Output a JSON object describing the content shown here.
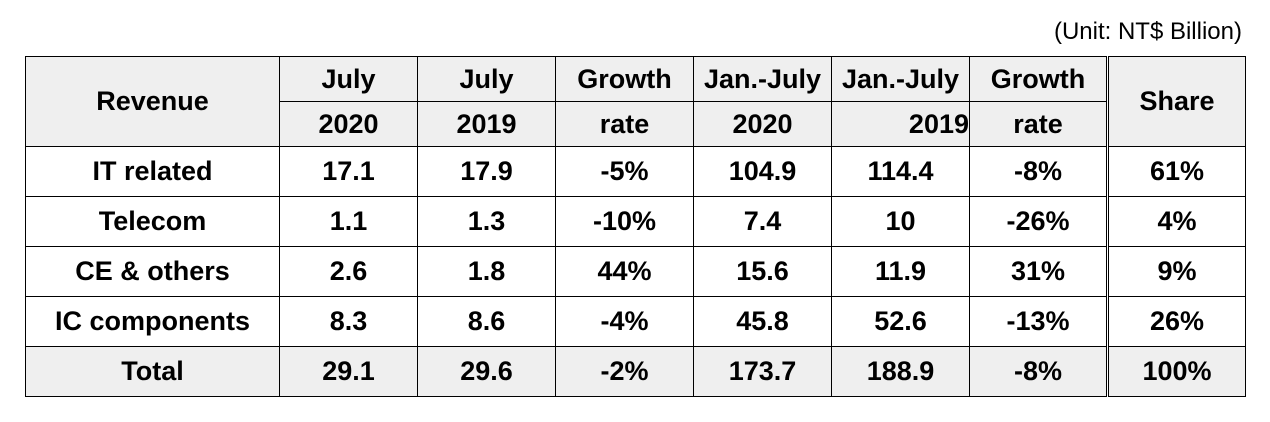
{
  "unit_note": "(Unit: NT$ Billion)",
  "header": {
    "revenue": "Revenue",
    "july_top": "July",
    "july_2020": "2020",
    "july_2019_top": "July",
    "july_2019": "2019",
    "growth_top": "Growth",
    "growth_bottom": "rate",
    "janjuly_2020_top": "Jan.-July",
    "janjuly_2020": "2020",
    "janjuly_2019_top": "Jan.-July",
    "janjuly_2019": "2019",
    "growth2_top": "Growth",
    "growth2_bottom": "rate",
    "share": "Share"
  },
  "rows": [
    {
      "name": "IT related",
      "july2020": "17.1",
      "july2019": "17.9",
      "growth": "-5%",
      "jj2020": "104.9",
      "jj2019": "114.4",
      "growth2": "-8%",
      "share": "61%"
    },
    {
      "name": "Telecom",
      "july2020": "1.1",
      "july2019": "1.3",
      "growth": "-10%",
      "jj2020": "7.4",
      "jj2019": "10",
      "growth2": "-26%",
      "share": "4%"
    },
    {
      "name": "CE & others",
      "july2020": "2.6",
      "july2019": "1.8",
      "growth": "44%",
      "jj2020": "15.6",
      "jj2019": "11.9",
      "growth2": "31%",
      "share": "9%"
    },
    {
      "name": "IC components",
      "july2020": "8.3",
      "july2019": "8.6",
      "growth": "-4%",
      "jj2020": "45.8",
      "jj2019": "52.6",
      "growth2": "-13%",
      "share": "26%"
    }
  ],
  "total": {
    "name": "Total",
    "july2020": "29.1",
    "july2019": "29.6",
    "growth": "-2%",
    "jj2020": "173.7",
    "jj2019": "188.9",
    "growth2": "-8%",
    "share": "100%"
  },
  "colors": {
    "header_bg": "#efefef",
    "border": "#000000"
  }
}
